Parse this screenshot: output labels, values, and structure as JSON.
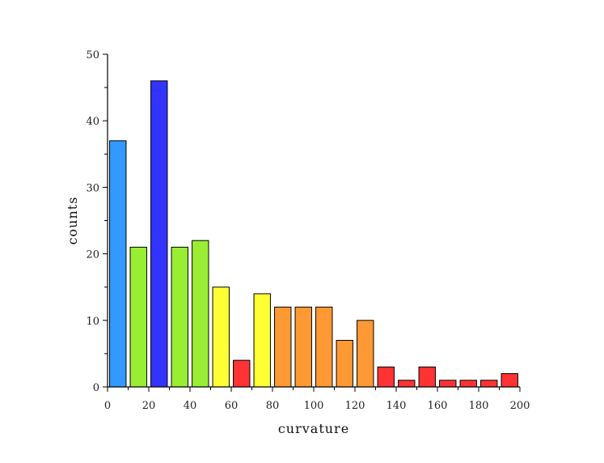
{
  "chart_data": {
    "type": "bar",
    "xlabel": "curvature",
    "ylabel": "counts",
    "xlim": [
      0,
      200
    ],
    "ylim": [
      0,
      50
    ],
    "bin_width": 10,
    "x_ticks": [
      0,
      20,
      40,
      60,
      80,
      100,
      120,
      140,
      160,
      180,
      200
    ],
    "y_ticks": [
      0,
      10,
      20,
      30,
      40,
      50
    ],
    "grid": false,
    "bins": [
      {
        "x": 5,
        "value": 37,
        "color": "#3399ff"
      },
      {
        "x": 15,
        "value": 21,
        "color": "#99ee33"
      },
      {
        "x": 25,
        "value": 46,
        "color": "#3333ff"
      },
      {
        "x": 35,
        "value": 21,
        "color": "#99ee33"
      },
      {
        "x": 45,
        "value": 22,
        "color": "#99ee33"
      },
      {
        "x": 55,
        "value": 15,
        "color": "#ffff33"
      },
      {
        "x": 65,
        "value": 4,
        "color": "#ff3333"
      },
      {
        "x": 75,
        "value": 14,
        "color": "#ffff33"
      },
      {
        "x": 85,
        "value": 12,
        "color": "#ff9933"
      },
      {
        "x": 95,
        "value": 12,
        "color": "#ff9933"
      },
      {
        "x": 105,
        "value": 12,
        "color": "#ff9933"
      },
      {
        "x": 115,
        "value": 7,
        "color": "#ff9933"
      },
      {
        "x": 125,
        "value": 10,
        "color": "#ff9933"
      },
      {
        "x": 135,
        "value": 3,
        "color": "#ff3333"
      },
      {
        "x": 145,
        "value": 1,
        "color": "#ff3333"
      },
      {
        "x": 155,
        "value": 3,
        "color": "#ff3333"
      },
      {
        "x": 165,
        "value": 1,
        "color": "#ff3333"
      },
      {
        "x": 175,
        "value": 1,
        "color": "#ff3333"
      },
      {
        "x": 185,
        "value": 1,
        "color": "#ff3333"
      },
      {
        "x": 195,
        "value": 2,
        "color": "#ff3333"
      }
    ]
  }
}
